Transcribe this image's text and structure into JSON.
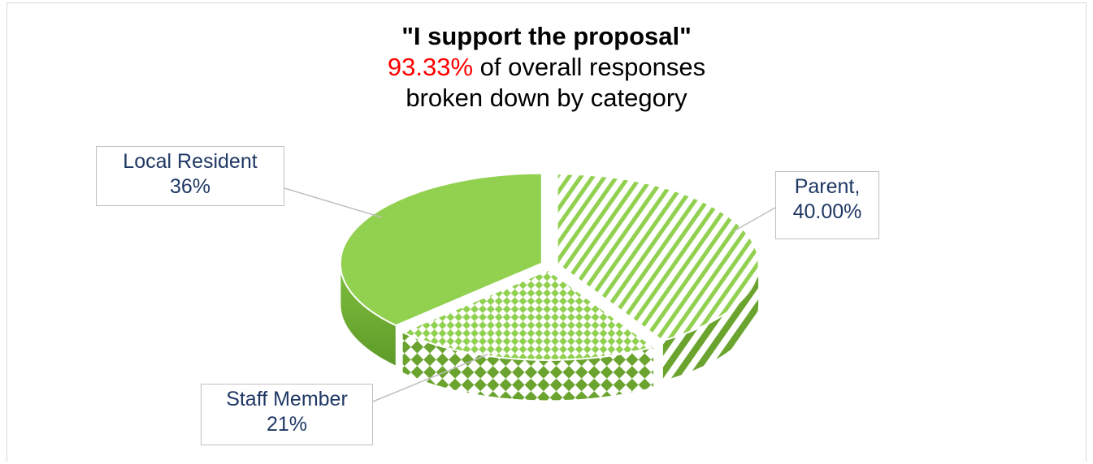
{
  "chart_data": {
    "type": "pie",
    "title_line1": "\"I support the proposal\"",
    "title_pct": "93.33%",
    "title_rest": " of overall responses",
    "title_line3": "broken down by category",
    "slices": [
      {
        "name": "Parent",
        "value": 40.0,
        "label_name": "Parent,",
        "label_value": "40.00%",
        "pattern": "diag-stripes"
      },
      {
        "name": "Staff Member",
        "value": 21,
        "label_name": "Staff Member",
        "label_value": "21%",
        "pattern": "checker-diamond"
      },
      {
        "name": "Local Resident",
        "value": 36,
        "label_name": "Local Resident",
        "label_value": "36%",
        "pattern": "solid"
      }
    ],
    "colors": {
      "green": "#92d050",
      "dark_green": "#6aa32e",
      "label_text": "#1f3864",
      "accent": "#ff0000"
    },
    "legend": "none",
    "style": "3d-exploded-pie"
  }
}
